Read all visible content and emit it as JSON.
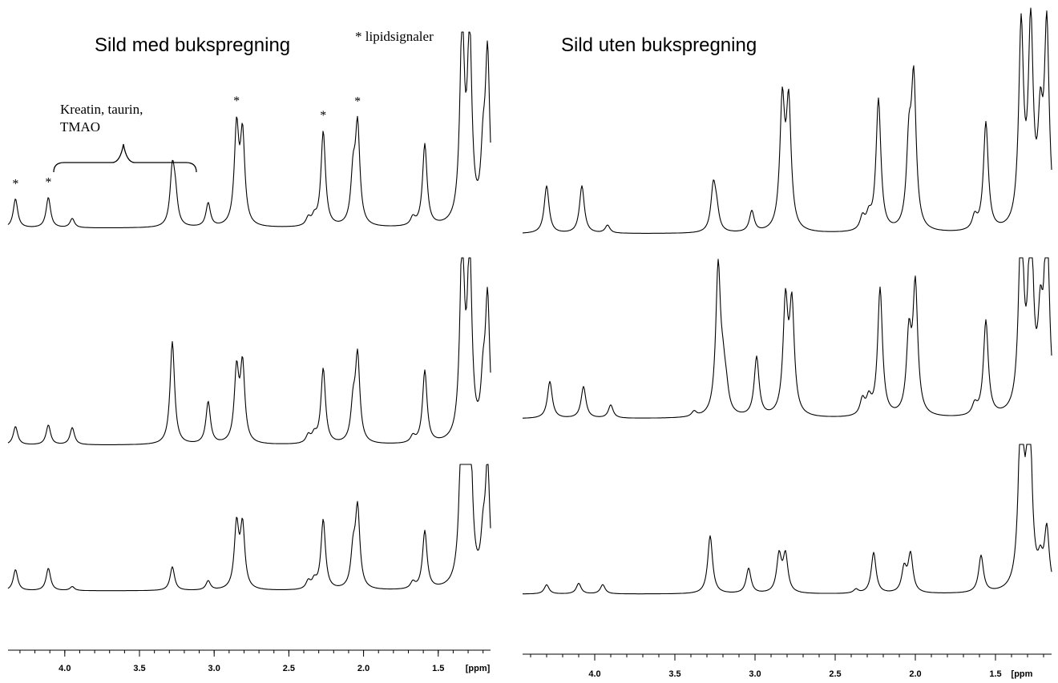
{
  "chart_data": [
    {
      "type": "line",
      "title": "Sild med bukspregning",
      "legend_note": "* lipidsignaler",
      "annotation": {
        "lines": [
          "Kreatin, taurin,",
          "TMAO"
        ]
      },
      "star_ppm": [
        4.33,
        4.11,
        2.85,
        2.27,
        2.04
      ],
      "xlabel": "[ppm]",
      "xlim": [
        4.38,
        1.15
      ],
      "x_reversed": true,
      "ticks": [
        {
          "v": 4.0,
          "label": "4.0"
        },
        {
          "v": 3.5,
          "label": "3.5"
        },
        {
          "v": 3.0,
          "label": "3.0"
        },
        {
          "v": 2.5,
          "label": "2.5"
        },
        {
          "v": 2.0,
          "label": "2.0"
        },
        {
          "v": 1.5,
          "label": "1.5"
        }
      ],
      "series": [
        {
          "peaks": [
            [
              4.33,
              0.22
            ],
            [
              4.11,
              0.23
            ],
            [
              3.95,
              0.07
            ],
            [
              3.28,
              0.42
            ],
            [
              3.26,
              0.2
            ],
            [
              3.04,
              0.18
            ],
            [
              2.85,
              0.73
            ],
            [
              2.81,
              0.67
            ],
            [
              2.37,
              0.06
            ],
            [
              2.33,
              0.06
            ],
            [
              2.27,
              0.72
            ],
            [
              2.07,
              0.36
            ],
            [
              2.04,
              0.74
            ],
            [
              1.67,
              0.06
            ],
            [
              1.59,
              0.62
            ],
            [
              1.34,
              1.5
            ],
            [
              1.29,
              1.4
            ],
            [
              1.2,
              0.44
            ],
            [
              1.17,
              1.25
            ]
          ]
        },
        {
          "peaks": [
            [
              4.33,
              0.14
            ],
            [
              4.11,
              0.15
            ],
            [
              3.95,
              0.13
            ],
            [
              3.28,
              0.78
            ],
            [
              3.04,
              0.32
            ],
            [
              2.85,
              0.54
            ],
            [
              2.81,
              0.58
            ],
            [
              2.37,
              0.06
            ],
            [
              2.33,
              0.06
            ],
            [
              2.27,
              0.57
            ],
            [
              2.07,
              0.26
            ],
            [
              2.04,
              0.65
            ],
            [
              1.67,
              0.05
            ],
            [
              1.59,
              0.55
            ],
            [
              1.34,
              1.5
            ],
            [
              1.29,
              1.4
            ],
            [
              1.2,
              0.36
            ],
            [
              1.17,
              1.05
            ]
          ]
        },
        {
          "peaks": [
            [
              4.33,
              0.16
            ],
            [
              4.11,
              0.17
            ],
            [
              3.95,
              0.03
            ],
            [
              3.28,
              0.18
            ],
            [
              3.04,
              0.07
            ],
            [
              2.85,
              0.48
            ],
            [
              2.81,
              0.47
            ],
            [
              2.37,
              0.06
            ],
            [
              2.33,
              0.06
            ],
            [
              2.27,
              0.53
            ],
            [
              2.07,
              0.26
            ],
            [
              2.04,
              0.6
            ],
            [
              1.67,
              0.05
            ],
            [
              1.59,
              0.44
            ],
            [
              1.34,
              1.5
            ],
            [
              1.29,
              1.4
            ],
            [
              1.2,
              0.3
            ],
            [
              1.17,
              0.9
            ]
          ]
        }
      ]
    },
    {
      "type": "line",
      "title": "Sild uten bukspregning",
      "xlabel": "[ppm",
      "xlim": [
        4.45,
        1.15
      ],
      "x_reversed": true,
      "ticks": [
        {
          "v": 4.0,
          "label": "4.0"
        },
        {
          "v": 3.5,
          "label": "3.5"
        },
        {
          "v": 3.0,
          "label": "3.0"
        },
        {
          "v": 2.5,
          "label": "2.5"
        },
        {
          "v": 2.0,
          "label": "2.0"
        },
        {
          "v": 1.5,
          "label": "1.5"
        }
      ],
      "series": [
        {
          "peaks": [
            [
              4.3,
              0.36
            ],
            [
              4.08,
              0.36
            ],
            [
              3.92,
              0.06
            ],
            [
              3.26,
              0.34
            ],
            [
              3.24,
              0.14
            ],
            [
              3.02,
              0.16
            ],
            [
              2.83,
              0.95
            ],
            [
              2.79,
              0.93
            ],
            [
              2.33,
              0.1
            ],
            [
              2.29,
              0.1
            ],
            [
              2.23,
              1.0
            ],
            [
              2.04,
              0.6
            ],
            [
              2.01,
              1.1
            ],
            [
              1.63,
              0.1
            ],
            [
              1.56,
              0.82
            ],
            [
              1.34,
              1.5
            ],
            [
              1.28,
              1.5
            ],
            [
              1.22,
              0.7
            ],
            [
              1.18,
              1.5
            ]
          ]
        },
        {
          "peaks": [
            [
              4.28,
              0.28
            ],
            [
              4.07,
              0.24
            ],
            [
              3.9,
              0.1
            ],
            [
              3.38,
              0.04
            ],
            [
              3.23,
              1.12
            ],
            [
              3.2,
              0.24
            ],
            [
              3.18,
              0.14
            ],
            [
              2.99,
              0.45
            ],
            [
              2.81,
              0.84
            ],
            [
              2.77,
              0.81
            ],
            [
              2.33,
              0.12
            ],
            [
              2.29,
              0.12
            ],
            [
              2.22,
              0.97
            ],
            [
              2.04,
              0.58
            ],
            [
              2.0,
              0.97
            ],
            [
              1.63,
              0.08
            ],
            [
              1.56,
              0.72
            ],
            [
              1.34,
              1.5
            ],
            [
              1.28,
              1.5
            ],
            [
              1.22,
              0.6
            ],
            [
              1.18,
              1.5
            ]
          ]
        },
        {
          "peaks": [
            [
              4.3,
              0.07
            ],
            [
              4.1,
              0.08
            ],
            [
              3.95,
              0.07
            ],
            [
              3.28,
              0.44
            ],
            [
              3.04,
              0.19
            ],
            [
              2.85,
              0.28
            ],
            [
              2.81,
              0.28
            ],
            [
              2.37,
              0.03
            ],
            [
              2.26,
              0.31
            ],
            [
              2.07,
              0.18
            ],
            [
              2.03,
              0.29
            ],
            [
              1.59,
              0.28
            ],
            [
              1.34,
              1.5
            ],
            [
              1.29,
              1.5
            ],
            [
              1.22,
              0.17
            ],
            [
              1.18,
              0.45
            ]
          ]
        }
      ]
    }
  ]
}
